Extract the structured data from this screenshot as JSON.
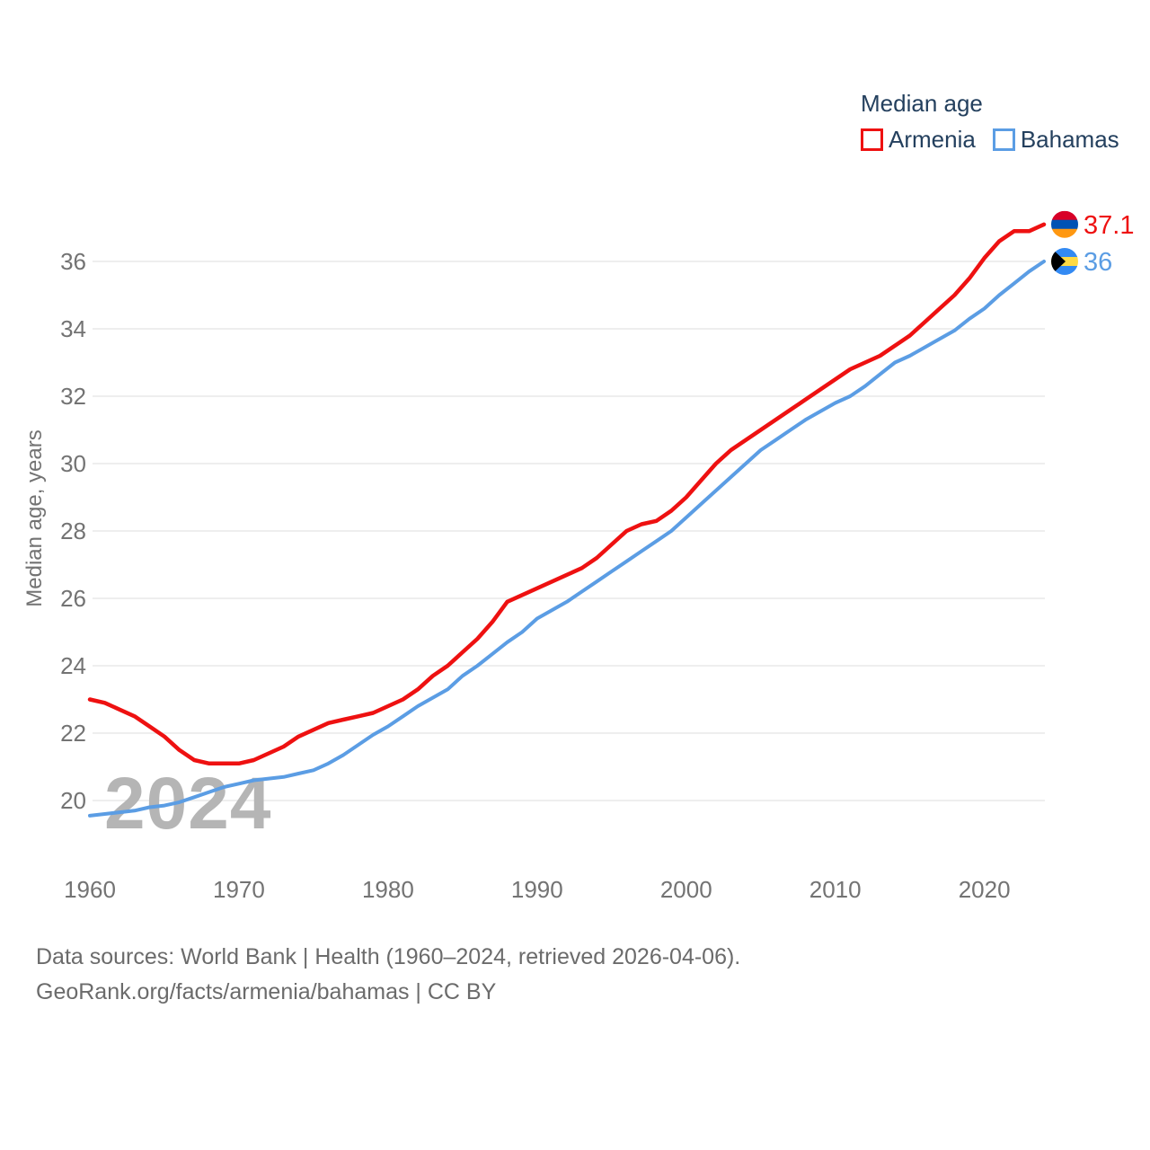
{
  "legend": {
    "title": "Median age",
    "items": [
      {
        "label": "Armenia"
      },
      {
        "label": "Bahamas"
      }
    ]
  },
  "watermark": "2024",
  "footer": {
    "line1": "Data sources: World Bank | Health (1960–2024, retrieved 2026-04-06).",
    "line2": "GeoRank.org/facts/armenia/bahamas | CC BY"
  },
  "colors": {
    "armenia_line": "#ee1111",
    "bahamas_line": "#5b9de4",
    "legend_text": "#24405e",
    "axis_text": "#737373",
    "gridline": "#e8e8e8",
    "watermark": "#b5b5b5",
    "footer_text": "#6b6b6b"
  },
  "chart_data": {
    "type": "line",
    "title": "Median age",
    "xlabel": "",
    "ylabel": "Median age, years",
    "xlim": [
      1960,
      2024
    ],
    "ylim": [
      18.7,
      37.6
    ],
    "grid": "horizontal",
    "legend_position": "top-right",
    "x_ticks": [
      1960,
      1970,
      1980,
      1990,
      2000,
      2010,
      2020
    ],
    "y_ticks": [
      20,
      22,
      24,
      26,
      28,
      30,
      32,
      34,
      36
    ],
    "x": [
      1960,
      1961,
      1962,
      1963,
      1964,
      1965,
      1966,
      1967,
      1968,
      1969,
      1970,
      1971,
      1972,
      1973,
      1974,
      1975,
      1976,
      1977,
      1978,
      1979,
      1980,
      1981,
      1982,
      1983,
      1984,
      1985,
      1986,
      1987,
      1988,
      1989,
      1990,
      1991,
      1992,
      1993,
      1994,
      1995,
      1996,
      1997,
      1998,
      1999,
      2000,
      2001,
      2002,
      2003,
      2004,
      2005,
      2006,
      2007,
      2008,
      2009,
      2010,
      2011,
      2012,
      2013,
      2014,
      2015,
      2016,
      2017,
      2018,
      2019,
      2020,
      2021,
      2022,
      2023,
      2024
    ],
    "series": [
      {
        "name": "Armenia",
        "color": "#ee1111",
        "end_value": 37.1,
        "end_label": "37.1",
        "flag_icon": {
          "name": "armenia-flag",
          "style": "horizontal-stripes",
          "stripe_colors": [
            "#D80027",
            "#0052B4",
            "#FF9811"
          ]
        },
        "values": [
          23.0,
          22.9,
          22.7,
          22.5,
          22.2,
          21.9,
          21.5,
          21.2,
          21.1,
          21.1,
          21.1,
          21.2,
          21.4,
          21.6,
          21.9,
          22.1,
          22.3,
          22.4,
          22.5,
          22.6,
          22.8,
          23.0,
          23.3,
          23.7,
          24.0,
          24.4,
          24.8,
          25.3,
          25.9,
          26.1,
          26.3,
          26.5,
          26.7,
          26.9,
          27.2,
          27.6,
          28.0,
          28.2,
          28.3,
          28.6,
          29.0,
          29.5,
          30.0,
          30.4,
          30.7,
          31.0,
          31.3,
          31.6,
          31.9,
          32.2,
          32.5,
          32.8,
          33.0,
          33.2,
          33.5,
          33.8,
          34.2,
          34.6,
          35.0,
          35.5,
          36.1,
          36.6,
          36.9,
          36.9,
          37.1
        ]
      },
      {
        "name": "Bahamas",
        "color": "#5b9de4",
        "end_value": 36,
        "end_label": "36",
        "flag_icon": {
          "name": "bahamas-flag",
          "style": "horizontal-stripes-with-triangle",
          "stripe_colors": [
            "#338AF3",
            "#FFDA44",
            "#338AF3"
          ],
          "triangle_color": "#000000"
        },
        "values": [
          19.55,
          19.6,
          19.65,
          19.7,
          19.8,
          19.85,
          19.95,
          20.1,
          20.25,
          20.4,
          20.5,
          20.6,
          20.65,
          20.7,
          20.8,
          20.9,
          21.1,
          21.35,
          21.65,
          21.95,
          22.2,
          22.5,
          22.8,
          23.05,
          23.3,
          23.7,
          24.0,
          24.35,
          24.7,
          25.0,
          25.4,
          25.65,
          25.9,
          26.2,
          26.5,
          26.8,
          27.1,
          27.4,
          27.7,
          28.0,
          28.4,
          28.8,
          29.2,
          29.6,
          30.0,
          30.4,
          30.7,
          31.0,
          31.3,
          31.55,
          31.8,
          32.0,
          32.3,
          32.65,
          33.0,
          33.2,
          33.45,
          33.7,
          33.95,
          34.3,
          34.6,
          35.0,
          35.35,
          35.7,
          36.0
        ]
      }
    ]
  }
}
